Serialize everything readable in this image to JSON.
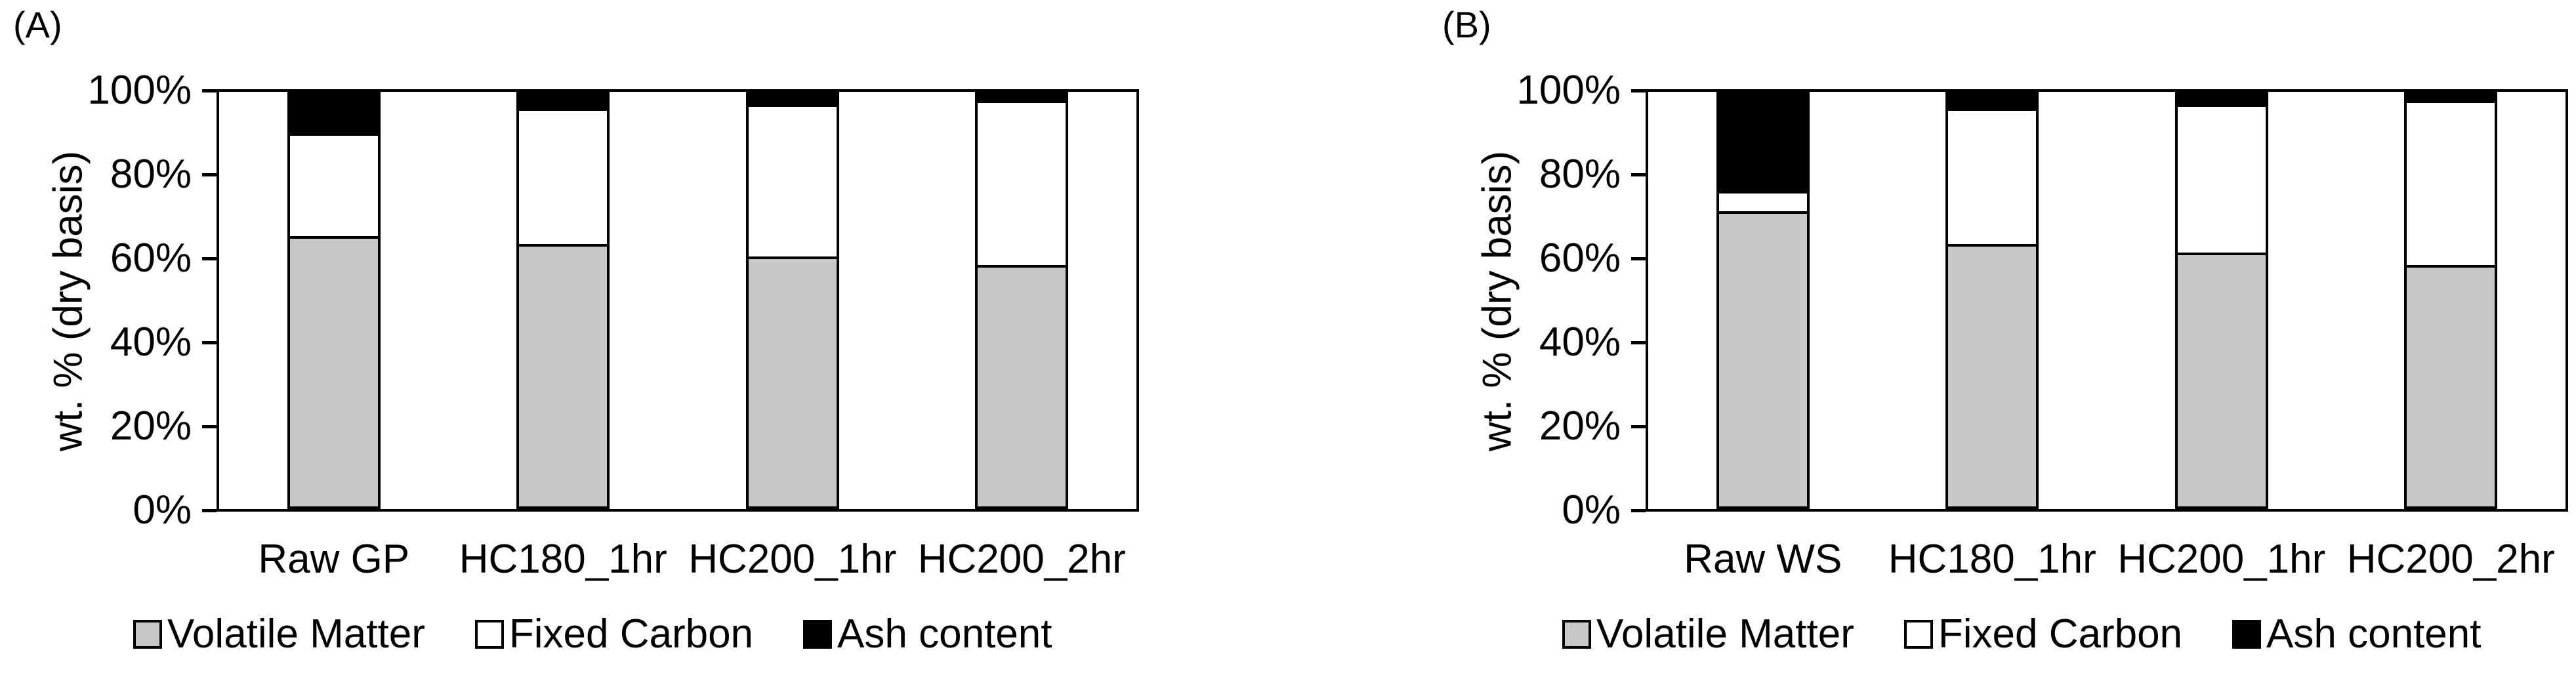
{
  "figure": {
    "y_tick_labels": [
      "100%",
      "80%",
      "60%",
      "40%",
      "20%",
      "0%"
    ],
    "legend": [
      {
        "label": "Volatile Matter",
        "color": "#c8c8c8"
      },
      {
        "label": "Fixed Carbon",
        "color": "#ffffff"
      },
      {
        "label": "Ash content",
        "color": "#000000"
      }
    ],
    "axis_color": "#000000",
    "plot_background": "#ffffff"
  },
  "chart_data": [
    {
      "type": "bar",
      "stacked": true,
      "title": "(A)",
      "categories": [
        "Raw GP",
        "HC180_1hr",
        "HC200_1hr",
        "HC200_2hr"
      ],
      "series": [
        {
          "name": "Volatile Matter",
          "color": "#c8c8c8",
          "values": [
            65,
            63,
            60,
            58
          ]
        },
        {
          "name": "Fixed Carbon",
          "color": "#ffffff",
          "values": [
            25,
            33,
            37,
            40
          ]
        },
        {
          "name": "Ash content",
          "color": "#000000",
          "values": [
            10,
            4,
            3,
            2
          ]
        }
      ],
      "xlabel": "",
      "ylabel": "wt. % (dry basis)",
      "ylim": [
        0,
        100
      ],
      "ytick_step": 20,
      "ytick_format": "percent",
      "grid": false,
      "legend_position": "bottom"
    },
    {
      "type": "bar",
      "stacked": true,
      "title": "(B)",
      "categories": [
        "Raw WS",
        "HC180_1hr",
        "HC200_1hr",
        "HC200_2hr"
      ],
      "series": [
        {
          "name": "Volatile Matter",
          "color": "#c8c8c8",
          "values": [
            71,
            63,
            61,
            58
          ]
        },
        {
          "name": "Fixed Carbon",
          "color": "#ffffff",
          "values": [
            5,
            33,
            36,
            40
          ]
        },
        {
          "name": "Ash content",
          "color": "#000000",
          "values": [
            24,
            4,
            3,
            2
          ]
        }
      ],
      "xlabel": "",
      "ylabel": "wt. % (dry basis)",
      "ylim": [
        0,
        100
      ],
      "ytick_step": 20,
      "ytick_format": "percent",
      "grid": false,
      "legend_position": "bottom"
    }
  ]
}
